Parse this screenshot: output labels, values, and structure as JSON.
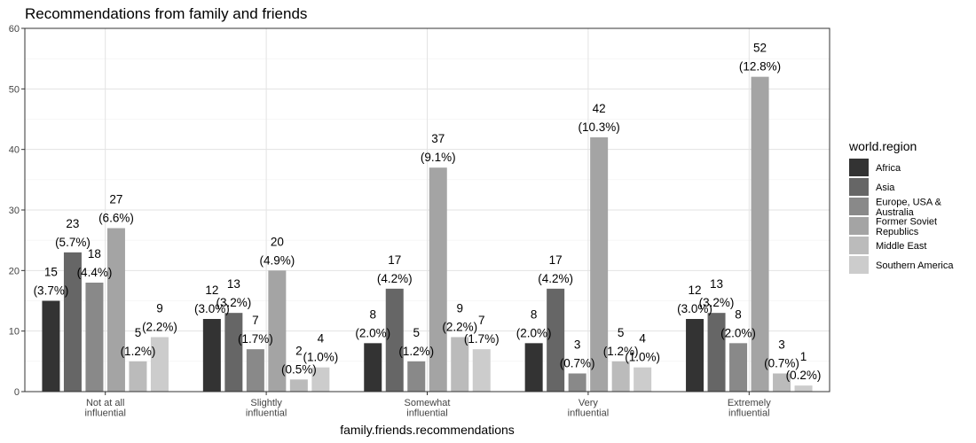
{
  "chart_data": {
    "type": "bar",
    "title": "Recommendations from family and friends",
    "xlabel": "family.friends.recommendations",
    "ylabel": "",
    "ylim": [
      0,
      60
    ],
    "yticks": [
      0,
      10,
      20,
      30,
      40,
      50,
      60
    ],
    "grid": true,
    "legend_position": "right",
    "categories": [
      [
        "Not at all",
        "influential"
      ],
      [
        "Slightly",
        "influential"
      ],
      [
        "Somewhat",
        "influential"
      ],
      [
        "Very",
        "influential"
      ],
      [
        "Extremely",
        "influential"
      ]
    ],
    "legend": {
      "title": "world.region",
      "entries": [
        {
          "name": [
            "Africa"
          ],
          "color": "#333333"
        },
        {
          "name": [
            "Asia"
          ],
          "color": "#666666"
        },
        {
          "name": [
            "Europe, USA &",
            "Australia"
          ],
          "color": "#898989"
        },
        {
          "name": [
            "Former Soviet",
            "Republics"
          ],
          "color": "#a4a4a4"
        },
        {
          "name": [
            "Middle East"
          ],
          "color": "#bbbbbb"
        },
        {
          "name": [
            "Southern America"
          ],
          "color": "#cccccc"
        }
      ]
    },
    "series": [
      {
        "name": "Africa",
        "values": [
          15,
          12,
          8,
          8,
          12
        ],
        "percents": [
          "(3.7%)",
          "(3.0%)",
          "(2.0%)",
          "(2.0%)",
          "(3.0%)"
        ]
      },
      {
        "name": "Asia",
        "values": [
          23,
          13,
          17,
          17,
          13
        ],
        "percents": [
          "(5.7%)",
          "(3.2%)",
          "(4.2%)",
          "(4.2%)",
          "(3.2%)"
        ]
      },
      {
        "name": "Europe, USA & Australia",
        "values": [
          18,
          7,
          5,
          3,
          8
        ],
        "percents": [
          "(4.4%)",
          "(1.7%)",
          "(1.2%)",
          "(0.7%)",
          "(2.0%)"
        ]
      },
      {
        "name": "Former Soviet Republics",
        "values": [
          27,
          20,
          37,
          42,
          52
        ],
        "percents": [
          "(6.6%)",
          "(4.9%)",
          "(9.1%)",
          "(10.3%)",
          "(12.8%)"
        ]
      },
      {
        "name": "Middle East",
        "values": [
          5,
          2,
          9,
          5,
          3
        ],
        "percents": [
          "(1.2%)",
          "(0.5%)",
          "(2.2%)",
          "(1.2%)",
          "(0.7%)"
        ]
      },
      {
        "name": "Southern America",
        "values": [
          9,
          4,
          7,
          4,
          1
        ],
        "percents": [
          "(2.2%)",
          "(1.0%)",
          "(1.7%)",
          "(1.0%)",
          "(0.2%)"
        ]
      }
    ]
  }
}
